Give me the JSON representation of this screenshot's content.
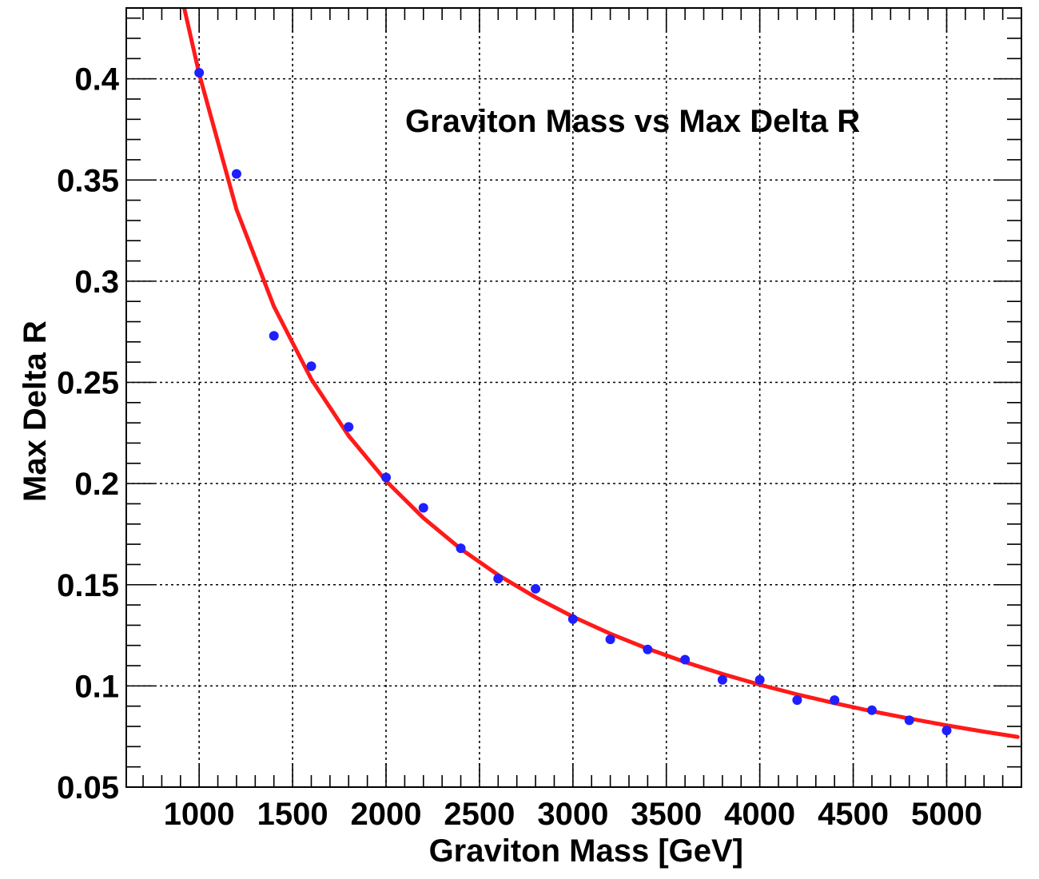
{
  "chart_data": {
    "type": "scatter",
    "title": "Graviton Mass vs Max Delta R",
    "xlabel": "Graviton Mass [GeV]",
    "ylabel": "Max Delta R",
    "xlim": [
      610,
      5400
    ],
    "ylim": [
      0.05,
      0.435
    ],
    "x_ticks": [
      1000,
      1500,
      2000,
      2500,
      3000,
      3500,
      4000,
      4500,
      5000
    ],
    "y_ticks": [
      0.05,
      0.1,
      0.15,
      0.2,
      0.25,
      0.3,
      0.35,
      0.4
    ],
    "x_tick_labels": [
      "1000",
      "1500",
      "2000",
      "2500",
      "3000",
      "3500",
      "4000",
      "4500",
      "5000"
    ],
    "y_tick_labels": [
      "0.05",
      "0.1",
      "0.15",
      "0.2",
      "0.25",
      "0.3",
      "0.35",
      "0.4"
    ],
    "grid": true,
    "series": [
      {
        "type": "scatter",
        "color": "#1f1fff",
        "x": [
          1000,
          1200,
          1400,
          1600,
          1800,
          2000,
          2200,
          2400,
          2600,
          2800,
          3000,
          3200,
          3400,
          3600,
          3800,
          4000,
          4200,
          4400,
          4600,
          4800,
          5000
        ],
        "y": [
          0.403,
          0.353,
          0.273,
          0.258,
          0.228,
          0.203,
          0.188,
          0.168,
          0.153,
          0.148,
          0.133,
          0.123,
          0.118,
          0.113,
          0.103,
          0.103,
          0.093,
          0.093,
          0.088,
          0.083,
          0.078
        ]
      },
      {
        "type": "line",
        "color": "#ff1a1a",
        "x": [
          920,
          1000,
          1200,
          1400,
          1600,
          1800,
          2000,
          2200,
          2400,
          2600,
          2800,
          3000,
          3200,
          3400,
          3600,
          3800,
          4000,
          4200,
          4400,
          4600,
          4800,
          5000,
          5200,
          5380
        ],
        "y": [
          0.435,
          0.4025,
          0.3354,
          0.2875,
          0.2516,
          0.2236,
          0.2013,
          0.183,
          0.1677,
          0.1548,
          0.1438,
          0.1342,
          0.1258,
          0.1184,
          0.1118,
          0.1059,
          0.1006,
          0.0958,
          0.0915,
          0.0875,
          0.0839,
          0.0805,
          0.0774,
          0.0748
        ]
      }
    ]
  }
}
